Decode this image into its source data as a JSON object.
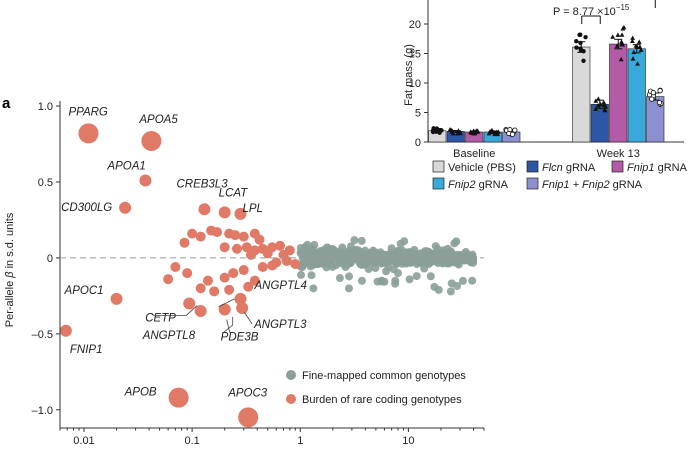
{
  "chart_data": [
    {
      "type": "scatter",
      "panel_label": "a",
      "ylabel": "Per-allele β in s.d. units",
      "xlabel": "",
      "xscale": "log",
      "xlim": [
        0.006,
        50
      ],
      "ylim": [
        -1.12,
        1.02
      ],
      "xticks": [
        "0.01",
        "0.1",
        "1",
        "10"
      ],
      "xtick_values": [
        0.01,
        0.1,
        1,
        10
      ],
      "yticks": [
        "1.0",
        "0.5",
        "0",
        "–0.5",
        "–1.0"
      ],
      "ytick_values": [
        1.0,
        0.5,
        0,
        -0.5,
        -1.0
      ],
      "reference_line_y": 0,
      "series": [
        {
          "name": "Fine-mapped common genotypes",
          "color": "#8a9f97",
          "cloud": {
            "x_range": [
              1,
              40
            ],
            "y_sd": 0.035,
            "y_range": [
              -0.28,
              0.12
            ],
            "count": 520
          }
        },
        {
          "name": "Burden of rare coding genotypes",
          "color": "#e07a66",
          "points": [
            {
              "label": "PPARG",
              "x": 0.011,
              "y": 0.82,
              "size": "large"
            },
            {
              "label": "APOA5",
              "x": 0.042,
              "y": 0.77,
              "size": "large"
            },
            {
              "label": "APOA1",
              "x": 0.037,
              "y": 0.51,
              "size": "medium"
            },
            {
              "label": "CD300LG",
              "x": 0.024,
              "y": 0.33,
              "size": "medium"
            },
            {
              "label": "CREB3L3",
              "x": 0.13,
              "y": 0.32,
              "size": "medium"
            },
            {
              "label": "LCAT",
              "x": 0.2,
              "y": 0.3,
              "size": "medium"
            },
            {
              "label": "LPL",
              "x": 0.28,
              "y": 0.29,
              "size": "medium"
            },
            {
              "label": "APOC1",
              "x": 0.02,
              "y": -0.27,
              "size": "medium"
            },
            {
              "label": "FNIP1",
              "x": 0.0068,
              "y": -0.48,
              "size": "medium"
            },
            {
              "label": "CETP",
              "x": 0.094,
              "y": -0.3,
              "size": "medium"
            },
            {
              "label": "ANGPTL4",
              "x": 0.28,
              "y": -0.27,
              "size": "medium"
            },
            {
              "label": "ANGPTL8",
              "x": 0.12,
              "y": -0.35,
              "size": "medium"
            },
            {
              "label": "PDE3B",
              "x": 0.2,
              "y": -0.34,
              "size": "medium"
            },
            {
              "label": "ANGPTL3",
              "x": 0.29,
              "y": -0.33,
              "size": "medium"
            },
            {
              "label": "APOB",
              "x": 0.075,
              "y": -0.92,
              "size": "large"
            },
            {
              "label": "APOC3",
              "x": 0.33,
              "y": -1.05,
              "size": "large"
            },
            {
              "x": 0.1,
              "y": 0.16
            },
            {
              "x": 0.12,
              "y": 0.14
            },
            {
              "x": 0.085,
              "y": 0.1
            },
            {
              "x": 0.15,
              "y": 0.18
            },
            {
              "x": 0.17,
              "y": 0.17
            },
            {
              "x": 0.22,
              "y": 0.16
            },
            {
              "x": 0.25,
              "y": 0.15
            },
            {
              "x": 0.3,
              "y": 0.14
            },
            {
              "x": 0.38,
              "y": 0.16
            },
            {
              "x": 0.2,
              "y": 0.07
            },
            {
              "x": 0.26,
              "y": 0.06
            },
            {
              "x": 0.32,
              "y": 0.07
            },
            {
              "x": 0.38,
              "y": 0.05
            },
            {
              "x": 0.45,
              "y": 0.06
            },
            {
              "x": 0.55,
              "y": 0.07
            },
            {
              "x": 0.65,
              "y": 0.08
            },
            {
              "x": 0.8,
              "y": 0.05
            },
            {
              "x": 0.42,
              "y": 0.12
            },
            {
              "x": 0.5,
              "y": 0.03
            },
            {
              "x": 0.7,
              "y": 0.02
            },
            {
              "x": 0.35,
              "y": 0.02
            },
            {
              "x": 0.6,
              "y": -0.03
            },
            {
              "x": 0.55,
              "y": -0.05
            },
            {
              "x": 0.45,
              "y": -0.06
            },
            {
              "x": 0.75,
              "y": -0.02
            },
            {
              "x": 0.9,
              "y": -0.04
            },
            {
              "x": 0.3,
              "y": -0.08
            },
            {
              "x": 0.24,
              "y": -0.1
            },
            {
              "x": 0.2,
              "y": -0.13
            },
            {
              "x": 0.14,
              "y": -0.15
            },
            {
              "x": 0.09,
              "y": -0.1
            },
            {
              "x": 0.06,
              "y": -0.14
            },
            {
              "x": 0.16,
              "y": -0.22
            },
            {
              "x": 0.22,
              "y": -0.21
            },
            {
              "x": 0.38,
              "y": -0.15
            },
            {
              "x": 0.33,
              "y": -0.19
            },
            {
              "x": 0.12,
              "y": -0.2
            },
            {
              "x": 0.07,
              "y": -0.06
            }
          ]
        }
      ],
      "legend": {
        "placement": "bottom-right",
        "items": [
          {
            "label": "Fine-mapped common genotypes",
            "color": "#8a9f97"
          },
          {
            "label": "Burden of rare coding genotypes",
            "color": "#e07a66"
          }
        ]
      }
    },
    {
      "type": "bar",
      "ylabel": "Fat mass (g)",
      "ylim": [
        0,
        23
      ],
      "yticks": [
        "0",
        "5",
        "10",
        "15",
        "20"
      ],
      "ytick_values": [
        0,
        5,
        10,
        15,
        20
      ],
      "groups": [
        "Baseline",
        "Week 13"
      ],
      "annotation": "P = 8.77 ×10",
      "annotation_exponent": "−15",
      "series": [
        {
          "name": "Vehicle (PBS)",
          "color": "#d9d9d9",
          "values": [
            1.9,
            16.1
          ],
          "errors": [
            0.15,
            0.9
          ],
          "marker": "circle-filled"
        },
        {
          "name": "Flcn gRNA",
          "color": "#2e56a6",
          "values": [
            1.8,
            6.4
          ],
          "errors": [
            0.15,
            0.7
          ],
          "marker": "triangle-filled"
        },
        {
          "name": "Fnip1 gRNA",
          "color": "#b45ba8",
          "values": [
            1.7,
            16.6
          ],
          "errors": [
            0.15,
            0.8
          ],
          "marker": "triangle-filled"
        },
        {
          "name": "Fnip2 gRNA",
          "color": "#39a9dc",
          "values": [
            1.7,
            15.8
          ],
          "errors": [
            0.15,
            0.7
          ],
          "marker": "triangle-filled"
        },
        {
          "name": "Fnip1 + Fnip2 gRNA",
          "color": "#8c90d1",
          "values": [
            1.7,
            7.7
          ],
          "errors": [
            0.15,
            0.6
          ],
          "marker": "circle-open"
        }
      ],
      "legend": {
        "placement": "bottom",
        "items": [
          {
            "label": "Vehicle (PBS)",
            "italic_part": "",
            "plain_part": "Vehicle (PBS)",
            "color": "#d9d9d9"
          },
          {
            "label": "Flcn gRNA",
            "italic_part": "Flcn",
            "plain_part": " gRNA",
            "color": "#2e56a6"
          },
          {
            "label": "Fnip1 gRNA",
            "italic_part": "Fnip1",
            "plain_part": " gRNA",
            "color": "#b45ba8"
          },
          {
            "label": "Fnip2 gRNA",
            "italic_part": "Fnip2",
            "plain_part": " gRNA",
            "color": "#39a9dc"
          },
          {
            "label": "Fnip1 + Fnip2 gRNA",
            "italic_part": "Fnip1 + Fnip2",
            "plain_part": " gRNA",
            "color": "#8c90d1"
          }
        ]
      }
    }
  ]
}
